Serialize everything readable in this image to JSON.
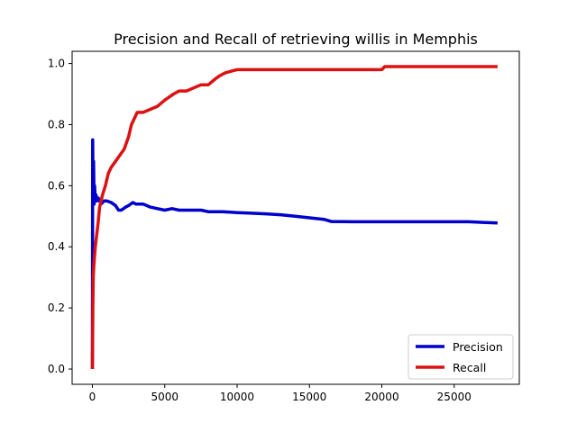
{
  "chart_data": {
    "type": "line",
    "title": "Precision and Recall of retrieving willis in Memphis",
    "xlabel": "",
    "ylabel": "",
    "xlim": [
      -1400,
      29500
    ],
    "ylim": [
      -0.05,
      1.04
    ],
    "xticks": [
      0,
      5000,
      10000,
      15000,
      20000,
      25000
    ],
    "xtick_labels": [
      "0",
      "5000",
      "10000",
      "15000",
      "20000",
      "25000"
    ],
    "yticks": [
      0.0,
      0.2,
      0.4,
      0.6,
      0.8,
      1.0
    ],
    "ytick_labels": [
      "0.0",
      "0.2",
      "0.4",
      "0.6",
      "0.8",
      "1.0"
    ],
    "grid": false,
    "legend": "lower-right",
    "series": [
      {
        "name": "Precision",
        "color": "#0000cc",
        "x": [
          0,
          20,
          50,
          80,
          120,
          150,
          200,
          250,
          300,
          400,
          500,
          600,
          800,
          1000,
          1300,
          1600,
          1800,
          2000,
          2300,
          2500,
          2800,
          3000,
          3500,
          4000,
          4500,
          5000,
          5500,
          6000,
          7000,
          7500,
          8000,
          9000,
          10000,
          11000,
          12000,
          13000,
          14000,
          15000,
          16000,
          16500,
          18000,
          20000,
          22000,
          24000,
          26000,
          27000,
          28000
        ],
        "y": [
          0.0,
          0.75,
          0.55,
          0.68,
          0.54,
          0.6,
          0.55,
          0.57,
          0.55,
          0.56,
          0.55,
          0.54,
          0.55,
          0.55,
          0.545,
          0.535,
          0.52,
          0.52,
          0.53,
          0.535,
          0.545,
          0.54,
          0.54,
          0.53,
          0.525,
          0.52,
          0.525,
          0.52,
          0.52,
          0.52,
          0.515,
          0.515,
          0.512,
          0.51,
          0.508,
          0.505,
          0.5,
          0.495,
          0.49,
          0.483,
          0.482,
          0.482,
          0.482,
          0.482,
          0.482,
          0.48,
          0.478
        ]
      },
      {
        "name": "Recall",
        "color": "#dd1111",
        "x": [
          0,
          30,
          60,
          100,
          150,
          200,
          300,
          400,
          500,
          700,
          900,
          1100,
          1300,
          1600,
          1900,
          2200,
          2500,
          2700,
          2900,
          3100,
          3500,
          4000,
          4500,
          5000,
          5300,
          5600,
          6000,
          6500,
          7000,
          7500,
          8000,
          8500,
          8800,
          9200,
          9600,
          10000,
          12000,
          15000,
          18000,
          20000,
          20200,
          24000,
          28000
        ],
        "y": [
          0.0,
          0.2,
          0.3,
          0.34,
          0.37,
          0.4,
          0.44,
          0.48,
          0.53,
          0.57,
          0.6,
          0.64,
          0.66,
          0.68,
          0.7,
          0.72,
          0.76,
          0.8,
          0.82,
          0.84,
          0.84,
          0.85,
          0.86,
          0.88,
          0.89,
          0.9,
          0.91,
          0.91,
          0.92,
          0.93,
          0.93,
          0.95,
          0.96,
          0.97,
          0.975,
          0.98,
          0.98,
          0.98,
          0.98,
          0.98,
          0.99,
          0.99,
          0.99
        ]
      }
    ]
  }
}
